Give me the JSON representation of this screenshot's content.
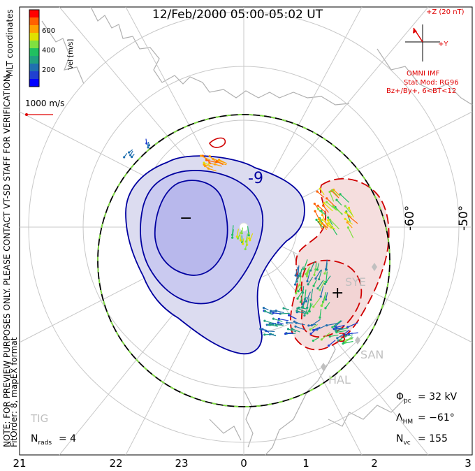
{
  "title": "12/Feb/2000 05:00-05:02 UT",
  "coord_label": "MLT coordinates",
  "note_line1": "NOTE: FOR PREVIEW PURPOSES ONLY. PLEASE CONTACT VT-SD STAFF FOR VERIFICATION.",
  "note_line2": "FitOrder: 8, mapEX format",
  "colorbar": {
    "label": "Vel [m/s]",
    "ticks": [
      "600",
      "400",
      "200"
    ],
    "colors": [
      "#ff0000",
      "#ff6000",
      "#ffa000",
      "#e0e000",
      "#80e040",
      "#20c060",
      "#20a080",
      "#2070b0",
      "#2040d0",
      "#0000ff"
    ]
  },
  "scale_label": "1000 m/s",
  "imf": {
    "z_label": "+Z (20 nT)",
    "y_label": "+Y",
    "source": "OMNI IMF",
    "stat_mod": "Stat Mod: RG96",
    "stat_cond": "Bz+/By+, 6<BT<12"
  },
  "lat_labels": [
    "-60°",
    "-50°"
  ],
  "contour_label": "-9",
  "contour_label_pos": "3",
  "min_marker": "−",
  "max_marker": "+",
  "stations": [
    "SYE",
    "SAN",
    "HAL",
    "TIG"
  ],
  "stats": {
    "phi_pc": "= 32 kV",
    "lambda_hm": "= −61°",
    "n_vc": "= 155",
    "n_rads": "= 4"
  },
  "stat_symbols": {
    "phi": "Φ",
    "phi_sub": "pc",
    "lambda": "Λ",
    "lambda_sub": "HM",
    "nvc": "N",
    "nvc_sub": "vc",
    "nrads": "N",
    "nrads_sub": "rads"
  },
  "mlt_ticks": [
    "21",
    "22",
    "23",
    "0",
    "1",
    "2",
    "3"
  ],
  "colors": {
    "negative_contour": "#0000a0",
    "negative_fill": "#dcdcf0",
    "negative_core": "#b8b8ec",
    "positive_contour": "#d00000",
    "positive_fill": "#f5dede",
    "land": "#a8a8a8",
    "boundary_green": "#80e040"
  }
}
